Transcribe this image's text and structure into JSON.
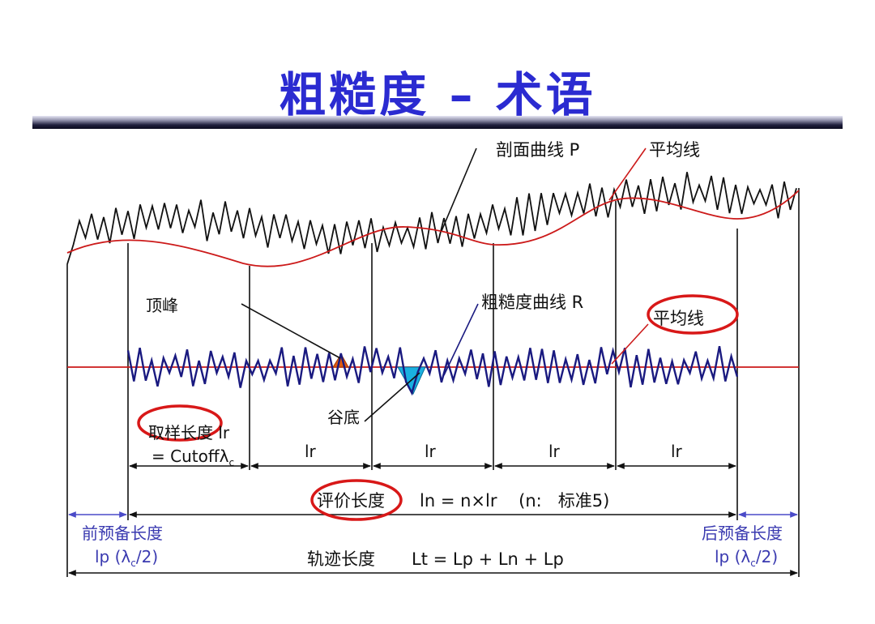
{
  "title": "粗糙度  –  术语",
  "labels": {
    "profile_curve": "剖面曲线 P",
    "mean_line_top": "平均线",
    "peak": "顶峰",
    "roughness_curve": "粗糙度曲线 R",
    "mean_line_bottom": "平均线",
    "valley": "谷底",
    "sampling_length_1": "取样长度 lr",
    "sampling_length_2": "= Cutoffλ",
    "sampling_length_sub": "c",
    "lr": "lr",
    "evaluation_length_name": "评价长度",
    "evaluation_length_formula": "ln = n×lr    (n:   标准5)",
    "pre_length_name": "前预备长度",
    "pre_length_formula": "lp (λ",
    "post_length_name": "后预备长度",
    "post_length_formula": "lp (λ",
    "lambda_sub": "c",
    "lambda_tail": "/2)",
    "traverse_length_name": "轨迹长度",
    "traverse_length_formula": "Lt = Lp + Ln + Lp"
  },
  "colors": {
    "title": "#2b2bd1",
    "profile": "#111111",
    "mean_line": "#cc1a1a",
    "roughness": "#1a1a80",
    "peak_fill": "#e05a10",
    "valley_fill": "#1ab0e0",
    "highlight_ellipse": "#d81818",
    "dimension_blue": "#4a4ac8"
  }
}
